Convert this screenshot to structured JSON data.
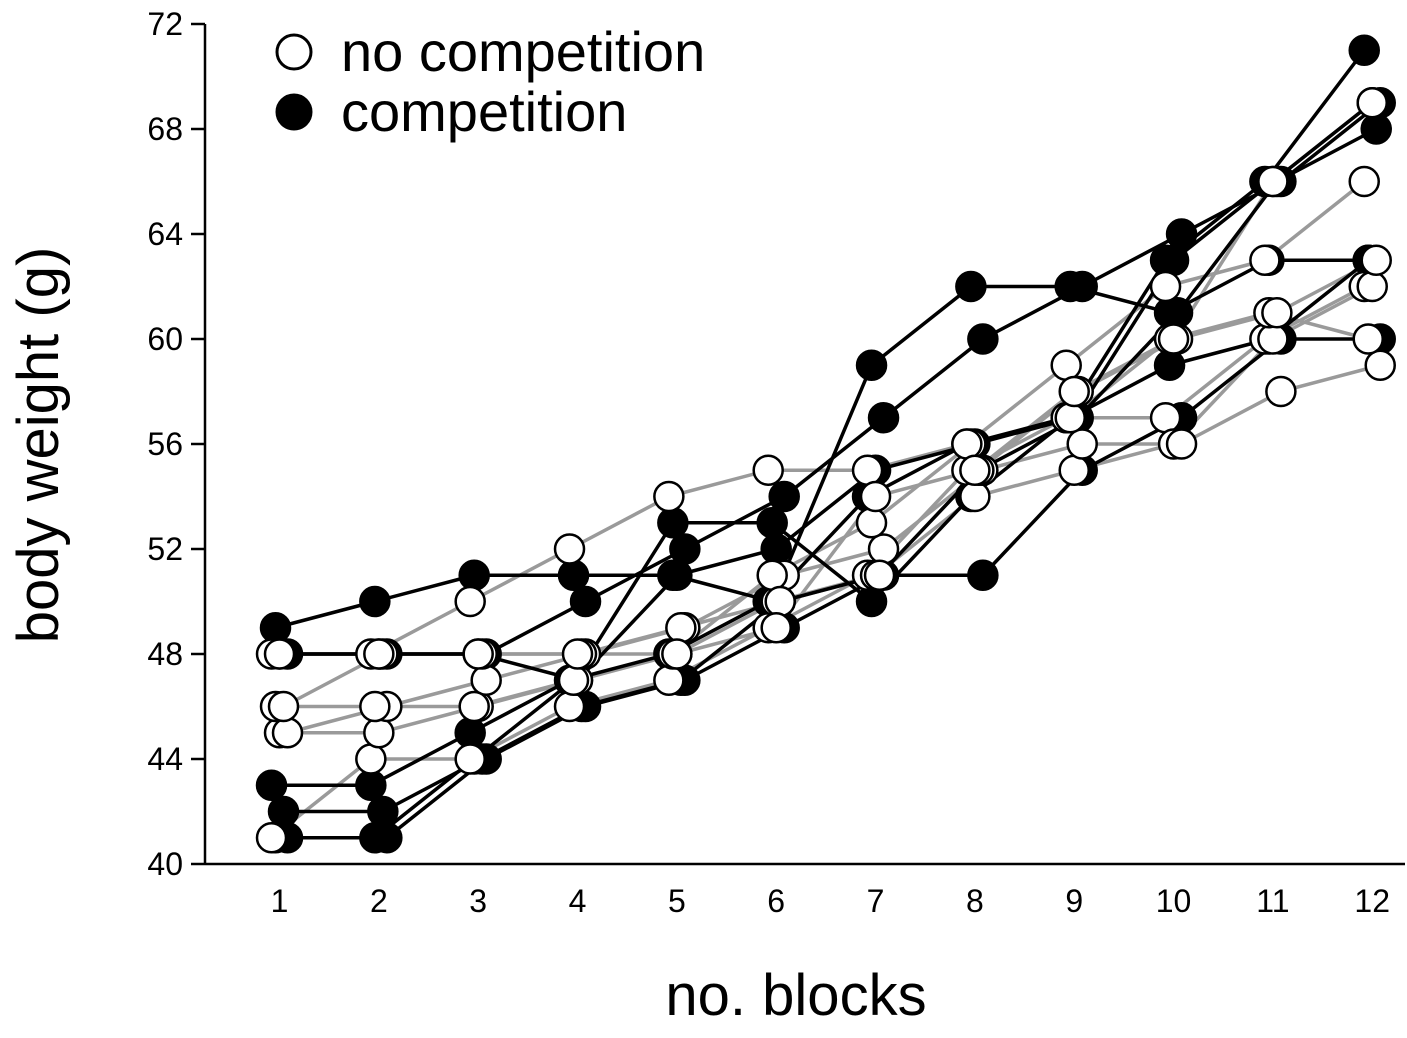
{
  "chart_data": {
    "type": "line",
    "title": "",
    "xlabel": "no. blocks",
    "ylabel": "body weight (g)",
    "x": [
      1,
      2,
      3,
      4,
      5,
      6,
      7,
      8,
      9,
      10,
      11,
      12
    ],
    "xlim": [
      0.25,
      12.35
    ],
    "ylim": [
      40,
      72
    ],
    "yticks": [
      40,
      44,
      48,
      52,
      56,
      60,
      64,
      68,
      72
    ],
    "grid": false,
    "legend": {
      "position": "top-left",
      "entries": [
        {
          "name": "no competition",
          "marker": "open-circle",
          "line_color": "#999999"
        },
        {
          "name": "competition",
          "marker": "filled-circle",
          "line_color": "#000000"
        }
      ]
    },
    "series": [
      {
        "group": "no competition",
        "values": [
          41,
          44,
          44,
          46,
          47,
          49,
          51,
          55,
          57,
          57,
          60,
          62
        ]
      },
      {
        "group": "no competition",
        "values": [
          45,
          45,
          46,
          47,
          48,
          50,
          51,
          54,
          55,
          56,
          60,
          62
        ]
      },
      {
        "group": "no competition",
        "values": [
          45,
          46,
          47,
          48,
          49,
          51,
          52,
          55,
          56,
          56,
          58,
          59
        ]
      },
      {
        "group": "no competition",
        "values": [
          46,
          46,
          46,
          47,
          48,
          51,
          53,
          56,
          57,
          60,
          61,
          60
        ]
      },
      {
        "group": "no competition",
        "values": [
          46,
          48,
          48,
          48,
          49,
          50,
          51,
          55,
          58,
          60,
          61,
          63
        ]
      },
      {
        "group": "no competition",
        "values": [
          48,
          48,
          50,
          52,
          54,
          55,
          55,
          56,
          59,
          62,
          63,
          66
        ]
      },
      {
        "group": "no competition",
        "values": [
          48,
          48,
          48,
          48,
          48,
          49,
          54,
          55,
          58,
          60,
          66,
          69
        ]
      },
      {
        "group": "competition",
        "values": [
          41,
          41,
          44,
          46,
          47,
          49,
          51,
          51,
          55,
          57,
          60,
          60
        ]
      },
      {
        "group": "competition",
        "values": [
          41,
          41,
          44,
          47,
          53,
          53,
          50,
          54,
          57,
          59,
          60,
          63
        ]
      },
      {
        "group": "competition",
        "values": [
          42,
          42,
          44,
          46,
          47,
          50,
          51,
          55,
          57,
          61,
          66,
          68
        ]
      },
      {
        "group": "competition",
        "values": [
          43,
          43,
          45,
          47,
          48,
          50,
          54,
          56,
          57,
          63,
          66,
          71
        ]
      },
      {
        "group": "competition",
        "values": [
          48,
          48,
          48,
          47,
          51,
          52,
          55,
          56,
          57,
          63,
          66,
          69
        ]
      },
      {
        "group": "competition",
        "values": [
          48,
          48,
          48,
          50,
          52,
          54,
          57,
          60,
          62,
          64,
          66,
          69
        ]
      },
      {
        "group": "competition",
        "values": [
          49,
          50,
          51,
          51,
          51,
          50,
          59,
          62,
          62,
          61,
          63,
          63
        ]
      }
    ]
  }
}
